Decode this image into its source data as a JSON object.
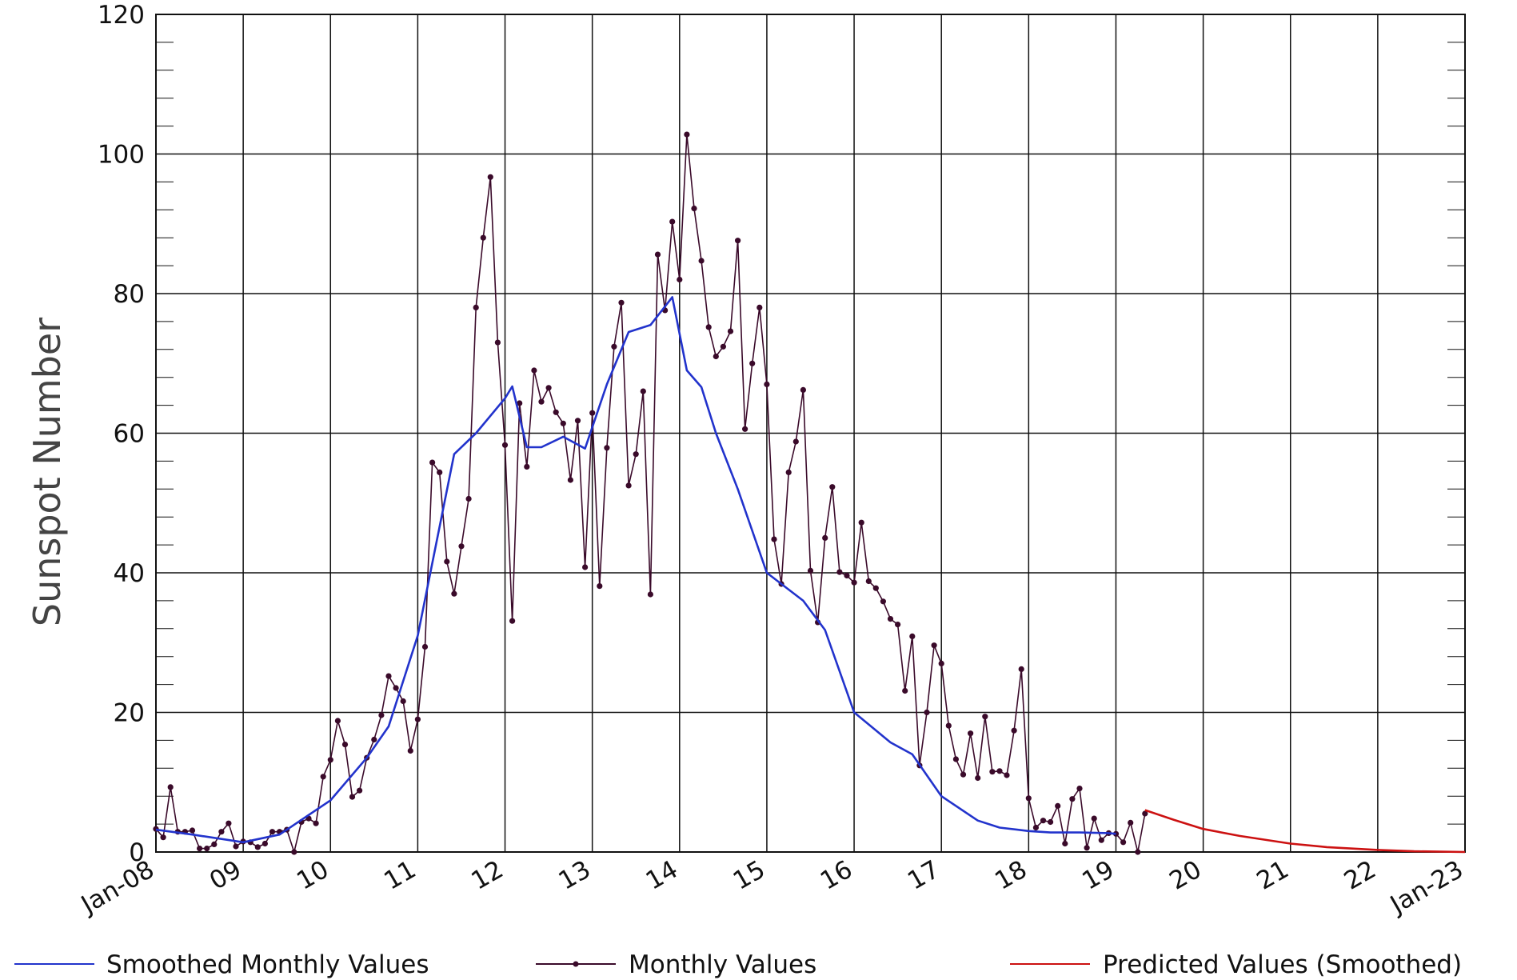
{
  "chart_data": {
    "type": "line",
    "title": "",
    "xlabel": "",
    "ylabel": "Sunspot Number",
    "ylim": [
      0,
      120
    ],
    "xlim": [
      "2008-01",
      "2023-01"
    ],
    "grid": true,
    "x_tick_labels": [
      "Jan-08",
      "09",
      "10",
      "11",
      "12",
      "13",
      "14",
      "15",
      "16",
      "17",
      "18",
      "19",
      "20",
      "21",
      "22",
      "Jan-23"
    ],
    "y_tick_labels": [
      "0",
      "20",
      "40",
      "60",
      "80",
      "100",
      "120"
    ],
    "legend": {
      "placement": "bottom",
      "entries": [
        "Smoothed Monthly Values",
        "Monthly Values",
        "Predicted Values (Smoothed)"
      ]
    },
    "colors": {
      "smoothed": "#2233cc",
      "monthly": "#3a0a2a",
      "predicted": "#cc1111",
      "grid": "#111111"
    },
    "series": [
      {
        "name": "Monthly Values",
        "x": [
          "2008-01",
          "2008-02",
          "2008-03",
          "2008-04",
          "2008-05",
          "2008-06",
          "2008-07",
          "2008-08",
          "2008-09",
          "2008-10",
          "2008-11",
          "2008-12",
          "2009-01",
          "2009-02",
          "2009-03",
          "2009-04",
          "2009-05",
          "2009-06",
          "2009-07",
          "2009-08",
          "2009-09",
          "2009-10",
          "2009-11",
          "2009-12",
          "2010-01",
          "2010-02",
          "2010-03",
          "2010-04",
          "2010-05",
          "2010-06",
          "2010-07",
          "2010-08",
          "2010-09",
          "2010-10",
          "2010-11",
          "2010-12",
          "2011-01",
          "2011-02",
          "2011-03",
          "2011-04",
          "2011-05",
          "2011-06",
          "2011-07",
          "2011-08",
          "2011-09",
          "2011-10",
          "2011-11",
          "2011-12",
          "2012-01",
          "2012-02",
          "2012-03",
          "2012-04",
          "2012-05",
          "2012-06",
          "2012-07",
          "2012-08",
          "2012-09",
          "2012-10",
          "2012-11",
          "2012-12",
          "2013-01",
          "2013-02",
          "2013-03",
          "2013-04",
          "2013-05",
          "2013-06",
          "2013-07",
          "2013-08",
          "2013-09",
          "2013-10",
          "2013-11",
          "2013-12",
          "2014-01",
          "2014-02",
          "2014-03",
          "2014-04",
          "2014-05",
          "2014-06",
          "2014-07",
          "2014-08",
          "2014-09",
          "2014-10",
          "2014-11",
          "2014-12",
          "2015-01",
          "2015-02",
          "2015-03",
          "2015-04",
          "2015-05",
          "2015-06",
          "2015-07",
          "2015-08",
          "2015-09",
          "2015-10",
          "2015-11",
          "2015-12",
          "2016-01",
          "2016-02",
          "2016-03",
          "2016-04",
          "2016-05",
          "2016-06",
          "2016-07",
          "2016-08",
          "2016-09",
          "2016-10",
          "2016-11",
          "2016-12",
          "2017-01",
          "2017-02",
          "2017-03",
          "2017-04",
          "2017-05",
          "2017-06",
          "2017-07",
          "2017-08",
          "2017-09",
          "2017-10",
          "2017-11",
          "2017-12",
          "2018-01",
          "2018-02",
          "2018-03",
          "2018-04",
          "2018-05",
          "2018-06",
          "2018-07",
          "2018-08",
          "2018-09",
          "2018-10",
          "2018-11",
          "2018-12",
          "2019-01",
          "2019-02",
          "2019-03",
          "2019-04",
          "2019-05"
        ],
        "y": [
          3.3,
          2.1,
          9.3,
          2.9,
          2.9,
          3.1,
          0.5,
          0.5,
          1.1,
          2.9,
          4.1,
          0.8,
          1.5,
          1.4,
          0.7,
          1.2,
          2.9,
          2.9,
          3.2,
          0,
          4.3,
          4.8,
          4.1,
          10.8,
          13.2,
          18.8,
          15.4,
          7.9,
          8.8,
          13.5,
          16.1,
          19.6,
          25.2,
          23.5,
          21.6,
          14.5,
          19.0,
          29.4,
          55.8,
          54.4,
          41.6,
          37.0,
          43.8,
          50.6,
          78.0,
          88.0,
          96.7,
          73.0,
          58.3,
          33.1,
          64.3,
          55.2,
          69.0,
          64.5,
          66.5,
          63.0,
          61.4,
          53.3,
          61.8,
          40.8,
          62.9,
          38.1,
          57.9,
          72.4,
          78.7,
          52.5,
          57.0,
          66.0,
          36.9,
          85.6,
          77.6,
          90.3,
          82.0,
          102.8,
          92.2,
          84.7,
          75.2,
          71.0,
          72.4,
          74.6,
          87.6,
          60.6,
          70.0,
          78.0,
          67.0,
          44.8,
          38.4,
          54.4,
          58.8,
          66.2,
          40.3,
          32.9,
          45.0,
          52.3,
          40.1,
          39.6,
          38.6,
          47.2,
          38.8,
          37.8,
          35.9,
          33.4,
          32.6,
          23.1,
          30.9,
          12.4,
          20.0,
          29.6,
          27.0,
          18.1,
          13.3,
          11.1,
          17.0,
          10.6,
          19.4,
          11.5,
          11.6,
          11.0,
          17.4,
          26.2,
          7.7,
          3.5,
          4.5,
          4.3,
          6.6,
          1.2,
          7.6,
          9.1,
          0.6,
          4.8,
          1.7,
          2.7,
          2.6,
          1.4,
          4.2,
          0.0,
          5.5
        ]
      },
      {
        "name": "Smoothed Monthly Values",
        "x": [
          "2008-01",
          "2008-06",
          "2009-01",
          "2009-06",
          "2010-01",
          "2010-06",
          "2010-09",
          "2011-01",
          "2011-06",
          "2011-09",
          "2012-01",
          "2012-02",
          "2012-04",
          "2012-06",
          "2012-09",
          "2012-12",
          "2013-03",
          "2013-06",
          "2013-09",
          "2013-12",
          "2014-02",
          "2014-04",
          "2014-06",
          "2014-09",
          "2015-01",
          "2015-06",
          "2015-09",
          "2016-01",
          "2016-06",
          "2016-09",
          "2017-01",
          "2017-06",
          "2017-09",
          "2018-01",
          "2018-04",
          "2018-08",
          "2018-12",
          "2019-01"
        ],
        "y": [
          3.2,
          2.5,
          1.4,
          2.5,
          7.4,
          13.5,
          18.0,
          31.0,
          57.0,
          60.0,
          65.0,
          66.7,
          58.0,
          58.0,
          59.5,
          57.8,
          67.0,
          74.5,
          75.5,
          79.5,
          69.0,
          66.6,
          60.0,
          52.0,
          40.0,
          36.0,
          31.8,
          20.0,
          15.7,
          14.0,
          8.0,
          4.5,
          3.5,
          3.0,
          2.8,
          2.8,
          2.7,
          2.6
        ]
      },
      {
        "name": "Predicted Values (Smoothed)",
        "x": [
          "2019-05",
          "2019-09",
          "2020-01",
          "2020-06",
          "2021-01",
          "2021-06",
          "2022-01",
          "2022-06",
          "2023-01"
        ],
        "y": [
          6.0,
          4.6,
          3.3,
          2.3,
          1.2,
          0.7,
          0.3,
          0.1,
          0.0
        ]
      }
    ]
  }
}
